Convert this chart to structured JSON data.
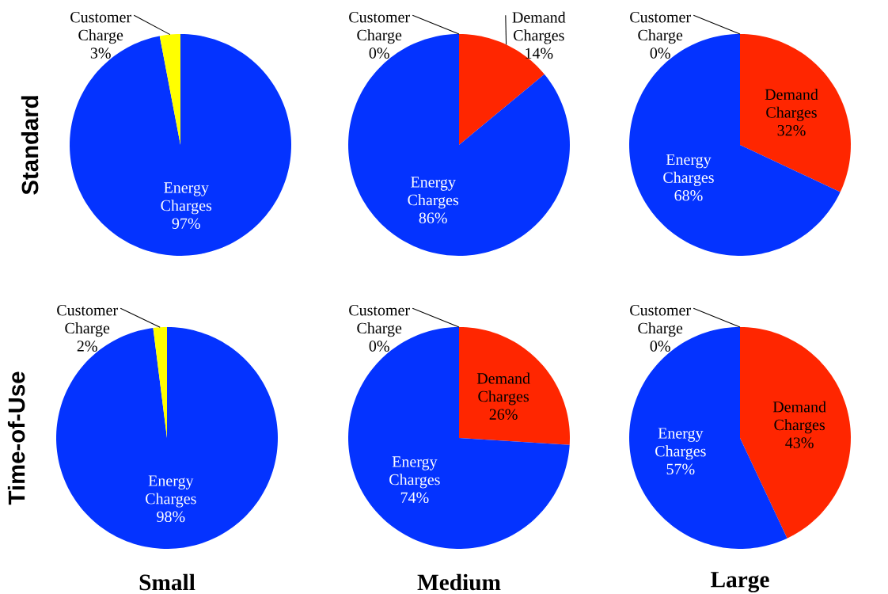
{
  "chart_data": [
    {
      "type": "pie",
      "ylabel": "Standard",
      "categories": [
        "Energy Charges",
        "Customer Charge"
      ],
      "values": [
        97,
        3
      ],
      "colors": [
        "#0433ff",
        "#ffff00"
      ],
      "value_labels": [
        "97%",
        "3%"
      ]
    },
    {
      "type": "pie",
      "categories": [
        "Demand Charges",
        "Energy Charges",
        "Customer Charge"
      ],
      "values": [
        14,
        86,
        0
      ],
      "colors": [
        "#ff2600",
        "#0433ff",
        "#ffff00"
      ],
      "value_labels": [
        "14%",
        "86%",
        "0%"
      ]
    },
    {
      "type": "pie",
      "categories": [
        "Demand Charges",
        "Energy Charges",
        "Customer Charge"
      ],
      "values": [
        32,
        68,
        0
      ],
      "colors": [
        "#ff2600",
        "#0433ff",
        "#ffff00"
      ],
      "value_labels": [
        "32%",
        "68%",
        "0%"
      ]
    },
    {
      "type": "pie",
      "ylabel": "Time-of-Use",
      "xlabel": "Small",
      "categories": [
        "Energy Charges",
        "Customer Charge"
      ],
      "values": [
        98,
        2
      ],
      "colors": [
        "#0433ff",
        "#ffff00"
      ],
      "value_labels": [
        "98%",
        "2%"
      ]
    },
    {
      "type": "pie",
      "xlabel": "Medium",
      "categories": [
        "Demand Charges",
        "Energy Charges",
        "Customer Charge"
      ],
      "values": [
        26,
        74,
        0
      ],
      "colors": [
        "#ff2600",
        "#0433ff",
        "#ffff00"
      ],
      "value_labels": [
        "26%",
        "74%",
        "0%"
      ]
    },
    {
      "type": "pie",
      "xlabel": "Large",
      "categories": [
        "Demand Charges",
        "Energy Charges",
        "Customer Charge"
      ],
      "values": [
        43,
        57,
        0
      ],
      "colors": [
        "#ff2600",
        "#0433ff",
        "#ffff00"
      ],
      "value_labels": [
        "43%",
        "57%",
        "0%"
      ]
    }
  ]
}
